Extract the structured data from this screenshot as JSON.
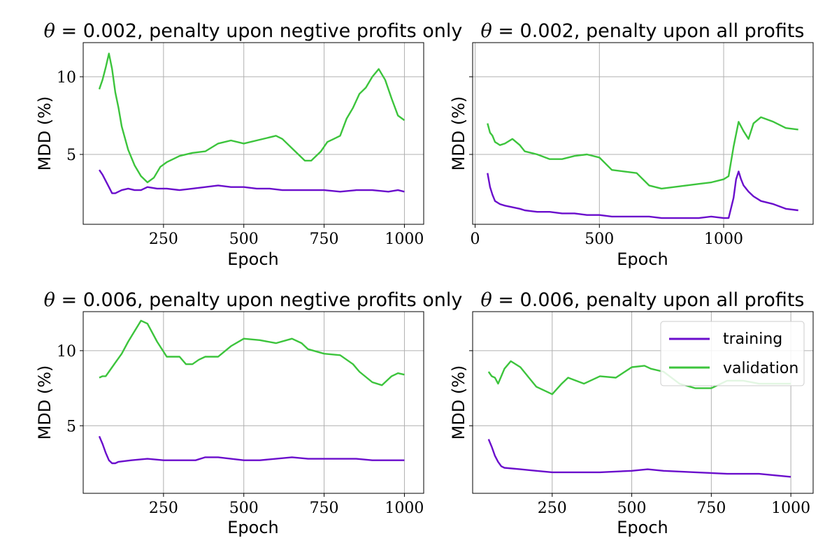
{
  "colors": {
    "training": "#6a0dcc",
    "validation": "#3cc43c",
    "grid": "#b0b0b0",
    "frame": "#000000"
  },
  "chart_data": [
    {
      "type": "line",
      "title_symbol": "θ",
      "title": " = 0.002, penalty upon negtive profits only",
      "xlabel": "Epoch",
      "ylabel": "MDD (%)",
      "xlim": [
        0,
        1060
      ],
      "ylim": [
        0.5,
        12.2
      ],
      "xticks": [
        250,
        500,
        750,
        1000
      ],
      "yticks": [
        5,
        10
      ],
      "ytick_labels_shown": true,
      "grid": true,
      "series": [
        {
          "name": "training",
          "x": [
            50,
            60,
            70,
            80,
            90,
            100,
            120,
            140,
            160,
            180,
            200,
            230,
            260,
            300,
            340,
            380,
            420,
            460,
            500,
            540,
            580,
            620,
            660,
            700,
            750,
            800,
            850,
            900,
            950,
            980,
            1000
          ],
          "values": [
            4.0,
            3.7,
            3.3,
            2.9,
            2.5,
            2.5,
            2.7,
            2.8,
            2.7,
            2.7,
            2.9,
            2.8,
            2.8,
            2.7,
            2.8,
            2.9,
            3.0,
            2.9,
            2.9,
            2.8,
            2.8,
            2.7,
            2.7,
            2.7,
            2.7,
            2.6,
            2.7,
            2.7,
            2.6,
            2.7,
            2.6
          ]
        },
        {
          "name": "validation",
          "x": [
            50,
            60,
            70,
            80,
            90,
            100,
            110,
            120,
            140,
            160,
            180,
            200,
            220,
            240,
            260,
            280,
            300,
            340,
            380,
            420,
            460,
            500,
            540,
            580,
            600,
            620,
            660,
            690,
            710,
            740,
            760,
            780,
            800,
            820,
            840,
            860,
            880,
            900,
            920,
            940,
            960,
            980,
            1000
          ],
          "values": [
            9.2,
            9.8,
            10.6,
            11.5,
            10.5,
            9.0,
            8.0,
            6.8,
            5.3,
            4.3,
            3.6,
            3.2,
            3.5,
            4.2,
            4.5,
            4.7,
            4.9,
            5.1,
            5.2,
            5.7,
            5.9,
            5.7,
            5.9,
            6.1,
            6.2,
            6.0,
            5.2,
            4.6,
            4.6,
            5.2,
            5.8,
            6.0,
            6.2,
            7.3,
            8.0,
            8.9,
            9.3,
            10.0,
            10.5,
            9.8,
            8.6,
            7.5,
            7.2
          ]
        }
      ]
    },
    {
      "type": "line",
      "title_symbol": "θ",
      "title": " = 0.002, penalty upon all profits",
      "xlabel": "Epoch",
      "ylabel": "MDD (%)",
      "xlim": [
        -10,
        1360
      ],
      "ylim": [
        0.5,
        12.2
      ],
      "xticks": [
        0,
        500,
        1000
      ],
      "yticks": [
        5,
        10
      ],
      "ytick_labels_shown": false,
      "grid": true,
      "series": [
        {
          "name": "training",
          "x": [
            50,
            60,
            70,
            80,
            90,
            100,
            120,
            150,
            180,
            200,
            250,
            300,
            350,
            400,
            450,
            500,
            550,
            600,
            650,
            700,
            750,
            800,
            850,
            900,
            950,
            1000,
            1020,
            1040,
            1050,
            1060,
            1070,
            1080,
            1100,
            1120,
            1150,
            1200,
            1250,
            1300
          ],
          "values": [
            3.8,
            2.9,
            2.4,
            2.0,
            1.9,
            1.8,
            1.7,
            1.6,
            1.5,
            1.4,
            1.3,
            1.3,
            1.2,
            1.2,
            1.1,
            1.1,
            1.0,
            1.0,
            1.0,
            1.0,
            0.9,
            0.9,
            0.9,
            0.9,
            1.0,
            0.9,
            0.9,
            2.2,
            3.4,
            3.9,
            3.4,
            3.0,
            2.6,
            2.3,
            2.0,
            1.8,
            1.5,
            1.4
          ]
        },
        {
          "name": "validation",
          "x": [
            50,
            60,
            70,
            80,
            90,
            100,
            120,
            150,
            180,
            200,
            250,
            300,
            350,
            400,
            450,
            500,
            550,
            600,
            650,
            700,
            750,
            800,
            850,
            900,
            950,
            1000,
            1020,
            1040,
            1060,
            1080,
            1100,
            1120,
            1150,
            1200,
            1250,
            1300
          ],
          "values": [
            7.0,
            6.4,
            6.2,
            5.8,
            5.7,
            5.6,
            5.7,
            6.0,
            5.6,
            5.2,
            5.0,
            4.7,
            4.7,
            4.9,
            5.0,
            4.8,
            4.0,
            3.9,
            3.8,
            3.0,
            2.8,
            2.9,
            3.0,
            3.1,
            3.2,
            3.4,
            3.6,
            5.5,
            7.1,
            6.5,
            6.0,
            7.0,
            7.4,
            7.1,
            6.7,
            6.6
          ]
        }
      ]
    },
    {
      "type": "line",
      "title_symbol": "θ",
      "title": " = 0.006, penalty upon negtive profits only",
      "xlabel": "Epoch",
      "ylabel": "MDD (%)",
      "xlim": [
        0,
        1060
      ],
      "ylim": [
        0.5,
        12.6
      ],
      "xticks": [
        250,
        500,
        750,
        1000
      ],
      "yticks": [
        5,
        10
      ],
      "ytick_labels_shown": true,
      "grid": true,
      "series": [
        {
          "name": "training",
          "x": [
            50,
            60,
            70,
            80,
            90,
            100,
            110,
            150,
            200,
            250,
            300,
            350,
            380,
            420,
            460,
            500,
            550,
            600,
            650,
            700,
            750,
            800,
            850,
            900,
            950,
            1000
          ],
          "values": [
            4.3,
            3.8,
            3.2,
            2.7,
            2.5,
            2.5,
            2.6,
            2.7,
            2.8,
            2.7,
            2.7,
            2.7,
            2.9,
            2.9,
            2.8,
            2.7,
            2.7,
            2.8,
            2.9,
            2.8,
            2.8,
            2.8,
            2.8,
            2.7,
            2.7,
            2.7
          ]
        },
        {
          "name": "validation",
          "x": [
            50,
            60,
            70,
            80,
            100,
            120,
            140,
            160,
            180,
            200,
            230,
            260,
            300,
            320,
            340,
            360,
            380,
            420,
            460,
            500,
            550,
            600,
            650,
            680,
            700,
            750,
            800,
            840,
            860,
            900,
            930,
            960,
            980,
            1000
          ],
          "values": [
            8.2,
            8.3,
            8.3,
            8.6,
            9.2,
            9.8,
            10.6,
            11.3,
            12.0,
            11.8,
            10.6,
            9.6,
            9.6,
            9.1,
            9.1,
            9.4,
            9.6,
            9.6,
            10.3,
            10.8,
            10.7,
            10.5,
            10.8,
            10.5,
            10.1,
            9.8,
            9.7,
            9.1,
            8.6,
            7.9,
            7.7,
            8.3,
            8.5,
            8.4
          ]
        }
      ]
    },
    {
      "type": "line",
      "title_symbol": "θ",
      "title": " = 0.006, penalty upon all profits",
      "xlabel": "Epoch",
      "ylabel": "MDD (%)",
      "xlim": [
        0,
        1070
      ],
      "ylim": [
        0.5,
        12.6
      ],
      "xticks": [
        250,
        500,
        750,
        1000
      ],
      "yticks": [
        5,
        10
      ],
      "ytick_labels_shown": false,
      "grid": true,
      "legend_placement": "upper right",
      "legend": [
        "training",
        "validation"
      ],
      "series": [
        {
          "name": "training",
          "x": [
            50,
            60,
            70,
            80,
            90,
            100,
            150,
            200,
            250,
            300,
            400,
            500,
            550,
            600,
            700,
            800,
            900,
            1000
          ],
          "values": [
            4.1,
            3.6,
            3.0,
            2.6,
            2.3,
            2.2,
            2.1,
            2.0,
            1.9,
            1.9,
            1.9,
            2.0,
            2.1,
            2.0,
            1.9,
            1.8,
            1.8,
            1.6
          ]
        },
        {
          "name": "validation",
          "x": [
            50,
            60,
            70,
            80,
            90,
            100,
            120,
            150,
            200,
            250,
            280,
            300,
            350,
            400,
            450,
            500,
            540,
            560,
            600,
            650,
            700,
            750,
            800,
            850,
            900,
            950,
            1000
          ],
          "values": [
            8.6,
            8.3,
            8.2,
            7.8,
            8.3,
            8.8,
            9.3,
            8.9,
            7.6,
            7.1,
            7.8,
            8.2,
            7.8,
            8.3,
            8.2,
            8.9,
            9.0,
            8.8,
            8.6,
            7.8,
            7.5,
            7.5,
            8.0,
            8.0,
            7.8,
            7.8,
            7.8
          ]
        }
      ]
    }
  ]
}
